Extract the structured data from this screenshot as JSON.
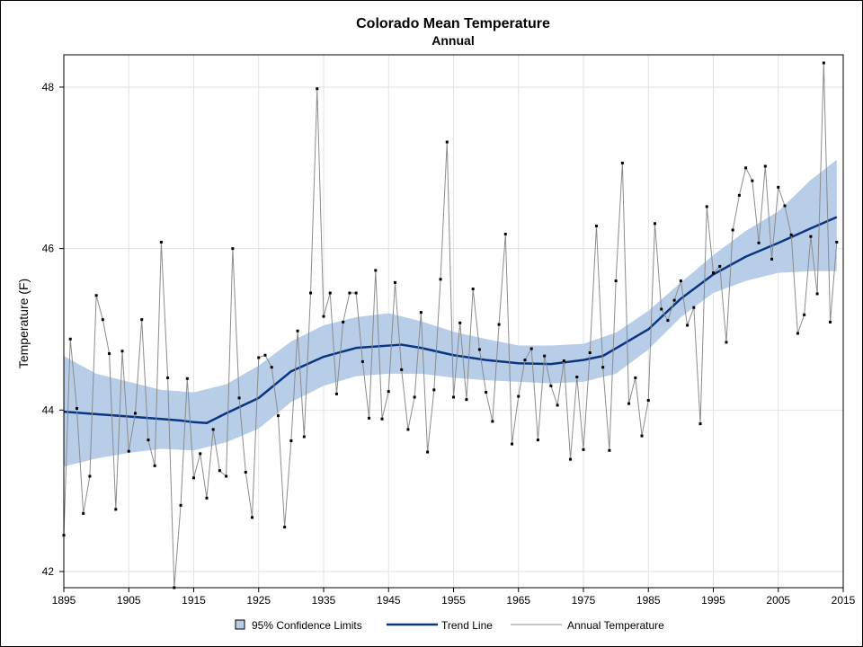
{
  "chart_data": {
    "type": "line",
    "title": "Colorado Mean Temperature",
    "subtitle": "Annual",
    "xlabel": "",
    "ylabel": "Temperature (F)",
    "xlim": [
      1895,
      2015
    ],
    "ylim": [
      41.8,
      48.4
    ],
    "x_ticks": [
      "1895",
      "1905",
      "1915",
      "1925",
      "1935",
      "1945",
      "1955",
      "1965",
      "1975",
      "1985",
      "1995",
      "2005",
      "2015"
    ],
    "y_ticks": [
      "42",
      "44",
      "46",
      "48"
    ],
    "grid": true,
    "legend_position": "bottom",
    "legend": [
      {
        "key": "confidence",
        "label": "95% Confidence Limits",
        "color": "#b8cde8"
      },
      {
        "key": "trend",
        "label": "Trend Line",
        "color": "#0a3580"
      },
      {
        "key": "annual",
        "label": "Annual Temperature",
        "color": "#8c8c8c"
      }
    ],
    "annual": {
      "name": "Annual Temperature",
      "x": [
        1895,
        1896,
        1897,
        1898,
        1899,
        1900,
        1901,
        1902,
        1903,
        1904,
        1905,
        1906,
        1907,
        1908,
        1909,
        1910,
        1911,
        1912,
        1913,
        1914,
        1915,
        1916,
        1917,
        1918,
        1919,
        1920,
        1921,
        1922,
        1923,
        1924,
        1925,
        1926,
        1927,
        1928,
        1929,
        1930,
        1931,
        1932,
        1933,
        1934,
        1935,
        1936,
        1937,
        1938,
        1939,
        1940,
        1941,
        1942,
        1943,
        1944,
        1945,
        1946,
        1947,
        1948,
        1949,
        1950,
        1951,
        1952,
        1953,
        1954,
        1955,
        1956,
        1957,
        1958,
        1959,
        1960,
        1961,
        1962,
        1963,
        1964,
        1965,
        1966,
        1967,
        1968,
        1969,
        1970,
        1971,
        1972,
        1973,
        1974,
        1975,
        1976,
        1977,
        1978,
        1979,
        1980,
        1981,
        1982,
        1983,
        1984,
        1985,
        1986,
        1987,
        1988,
        1989,
        1990,
        1991,
        1992,
        1993,
        1994,
        1995,
        1996,
        1997,
        1998,
        1999,
        2000,
        2001,
        2002,
        2003,
        2004,
        2005,
        2006,
        2007,
        2008,
        2009,
        2010,
        2011,
        2012,
        2013,
        2014
      ],
      "values": [
        42.45,
        44.88,
        44.02,
        42.72,
        43.18,
        45.42,
        45.12,
        44.7,
        42.77,
        44.73,
        43.49,
        43.96,
        45.12,
        43.63,
        43.31,
        46.08,
        44.4,
        41.8,
        42.82,
        44.39,
        43.16,
        43.46,
        42.91,
        43.76,
        43.25,
        43.18,
        46.0,
        44.15,
        43.23,
        42.67,
        44.65,
        44.68,
        44.53,
        43.93,
        42.55,
        43.62,
        44.98,
        43.67,
        45.45,
        47.98,
        45.16,
        45.45,
        44.2,
        45.09,
        45.45,
        45.45,
        44.6,
        43.9,
        45.73,
        43.89,
        44.23,
        45.58,
        44.5,
        43.76,
        44.16,
        45.21,
        43.48,
        44.25,
        45.62,
        47.32,
        44.16,
        45.08,
        44.13,
        45.5,
        44.75,
        44.22,
        43.86,
        45.06,
        46.18,
        43.58,
        44.17,
        44.62,
        44.76,
        43.63,
        44.67,
        44.3,
        44.06,
        44.61,
        43.39,
        44.41,
        43.51,
        44.71,
        46.28,
        44.53,
        43.5,
        45.6,
        47.06,
        44.08,
        44.4,
        43.68,
        44.12,
        46.31,
        45.25,
        45.11,
        45.36,
        45.6,
        45.05,
        45.27,
        43.83,
        46.52,
        45.7,
        45.78,
        44.84,
        46.23,
        46.66,
        47.0,
        46.84,
        46.07,
        47.02,
        45.87,
        46.76,
        46.53,
        46.17,
        44.95,
        45.18,
        46.15,
        45.44,
        48.3,
        45.09,
        46.08
      ]
    },
    "trend": {
      "name": "Trend Line",
      "x": [
        1895,
        1900,
        1905,
        1910,
        1913,
        1915,
        1917,
        1920,
        1925,
        1930,
        1935,
        1940,
        1947,
        1950,
        1955,
        1960,
        1965,
        1970,
        1975,
        1978,
        1985,
        1990,
        1995,
        2000,
        2005,
        2010,
        2014
      ],
      "values": [
        43.98,
        43.95,
        43.92,
        43.89,
        43.87,
        43.85,
        43.84,
        43.96,
        44.15,
        44.48,
        44.66,
        44.77,
        44.81,
        44.77,
        44.68,
        44.62,
        44.58,
        44.57,
        44.62,
        44.67,
        45.0,
        45.38,
        45.68,
        45.9,
        46.07,
        46.25,
        46.39
      ]
    },
    "confidence": {
      "name": "95% Confidence Limits",
      "x": [
        1895,
        1900,
        1905,
        1910,
        1915,
        1920,
        1925,
        1930,
        1935,
        1940,
        1945,
        1950,
        1955,
        1960,
        1965,
        1970,
        1975,
        1980,
        1985,
        1990,
        1995,
        2000,
        2005,
        2010,
        2014
      ],
      "upper": [
        44.67,
        44.45,
        44.35,
        44.25,
        44.22,
        44.32,
        44.55,
        44.85,
        45.05,
        45.15,
        45.2,
        45.1,
        44.97,
        44.88,
        44.8,
        44.8,
        44.82,
        44.96,
        45.23,
        45.58,
        45.92,
        46.22,
        46.46,
        46.85,
        47.1
      ],
      "lower": [
        43.3,
        43.4,
        43.47,
        43.52,
        43.5,
        43.6,
        43.77,
        44.1,
        44.3,
        44.42,
        44.45,
        44.45,
        44.4,
        44.37,
        44.35,
        44.33,
        44.35,
        44.45,
        44.75,
        45.15,
        45.45,
        45.6,
        45.7,
        45.72,
        45.72
      ]
    }
  }
}
